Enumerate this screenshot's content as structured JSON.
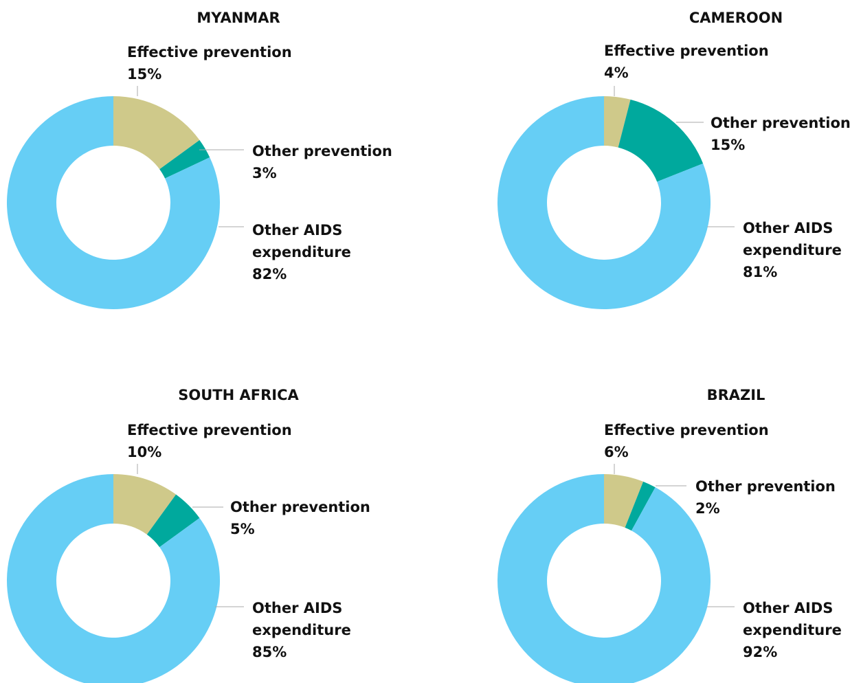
{
  "chart_data": [
    {
      "type": "pie",
      "title": "MYANMAR",
      "categories": [
        "Effective prevention",
        "Other prevention",
        "Other AIDS expenditure"
      ],
      "values": [
        15,
        3,
        82
      ],
      "value_labels": [
        "15%",
        "3%",
        "82%"
      ],
      "colors": [
        "#cfc98a",
        "#00a99d",
        "#66cef5"
      ]
    },
    {
      "type": "pie",
      "title": "CAMEROON",
      "categories": [
        "Effective prevention",
        "Other prevention",
        "Other AIDS expenditure"
      ],
      "values": [
        4,
        15,
        81
      ],
      "value_labels": [
        "4%",
        "15%",
        "81%"
      ],
      "colors": [
        "#cfc98a",
        "#00a99d",
        "#66cef5"
      ]
    },
    {
      "type": "pie",
      "title": "SOUTH AFRICA",
      "categories": [
        "Effective prevention",
        "Other prevention",
        "Other AIDS expenditure"
      ],
      "values": [
        10,
        5,
        85
      ],
      "value_labels": [
        "10%",
        "5%",
        "85%"
      ],
      "colors": [
        "#cfc98a",
        "#00a99d",
        "#66cef5"
      ]
    },
    {
      "type": "pie",
      "title": "BRAZIL",
      "categories": [
        "Effective prevention",
        "Other prevention",
        "Other AIDS expenditure"
      ],
      "values": [
        6,
        2,
        92
      ],
      "value_labels": [
        "6%",
        "2%",
        "92%"
      ],
      "colors": [
        "#cfc98a",
        "#00a99d",
        "#66cef5"
      ]
    }
  ]
}
